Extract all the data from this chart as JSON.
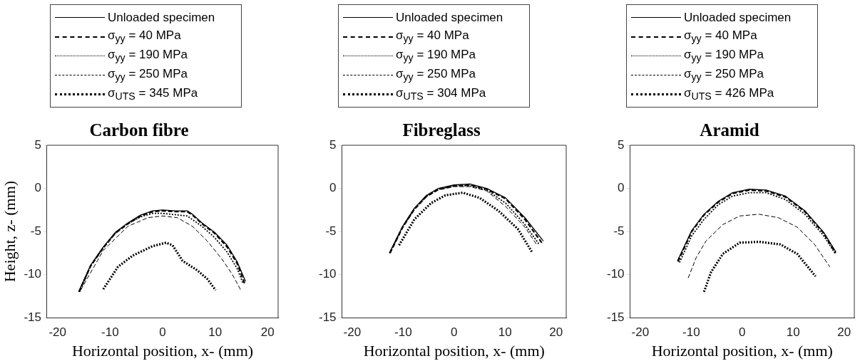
{
  "chart_data": [
    {
      "type": "line",
      "title": "Carbon fibre",
      "xlabel": "Horizontal position, x- (mm)",
      "ylabel": "Height, z- (mm)",
      "xlim": [
        -22,
        22
      ],
      "xticks": [
        -20,
        -10,
        0,
        10,
        20
      ],
      "ylim": [
        -15,
        5
      ],
      "yticks": [
        -15,
        -10,
        -5,
        0,
        5
      ],
      "grid": false,
      "legend": "top",
      "marker": "none",
      "series": [
        {
          "name": "Unloaded specimen",
          "color": "#000000",
          "line_style": "solid",
          "x": [
            -16.0,
            -13.7,
            -11.3,
            -9.0,
            -6.6,
            -4.2,
            -1.9,
            0,
            2.4,
            4.7,
            5.7,
            7.5,
            9.9,
            12.3,
            14.2,
            15.8
          ],
          "values": [
            -12.0,
            -8.9,
            -6.8,
            -5.1,
            -4.0,
            -3.1,
            -2.6,
            -2.5,
            -2.6,
            -2.6,
            -3.0,
            -4.0,
            -5.1,
            -6.6,
            -8.5,
            -10.8
          ]
        },
        {
          "name": "σ$_{yy}$ = 40 MPa",
          "color": "#000000",
          "line_style": "dashed",
          "x": [
            -15.9,
            -13.7,
            -11.3,
            -9.0,
            -6.6,
            -4.2,
            -1.9,
            0,
            2.4,
            4.7,
            5.7,
            7.5,
            9.9,
            12.3,
            14.2,
            15.6
          ],
          "values": [
            -12.0,
            -9.0,
            -6.9,
            -5.2,
            -4.1,
            -3.2,
            -2.7,
            -2.6,
            -2.7,
            -2.7,
            -3.1,
            -4.1,
            -5.2,
            -6.8,
            -8.7,
            -11.0
          ]
        },
        {
          "name": "σ$_{yy}$ = 190 MPa",
          "color": "#000000",
          "line_style": "dotted",
          "x": [
            -15.8,
            -13.7,
            -11.3,
            -9.0,
            -6.6,
            -4.2,
            -1.9,
            0,
            4.7,
            7.5,
            9.9,
            12.3,
            14.2,
            15.3
          ],
          "values": [
            -12.0,
            -9.0,
            -6.9,
            -5.2,
            -4.1,
            -3.3,
            -2.9,
            -2.9,
            -3.2,
            -4.4,
            -5.7,
            -7.4,
            -9.3,
            -11.0
          ]
        },
        {
          "name": "σ$_{yy}$ = 250 MPa",
          "color": "#000000",
          "line_style": "dashed",
          "x": [
            -15.6,
            -11.3,
            -6.6,
            -2.8,
            0,
            2.8,
            5.7,
            8.5,
            11.3,
            13.2,
            14.9
          ],
          "values": [
            -11.8,
            -7.2,
            -4.4,
            -3.4,
            -3.2,
            -3.4,
            -4.4,
            -6.1,
            -8.2,
            -9.9,
            -11.8
          ]
        },
        {
          "name": "σ$_{UTS}$ = 345 MPa",
          "color": "#000000",
          "line_style": "dotted",
          "x": [
            -11.3,
            -8.5,
            -5.7,
            -1.9,
            0.7,
            1.9,
            3.8,
            6.6,
            8.5,
            10.1
          ],
          "values": [
            -11.7,
            -9.1,
            -7.8,
            -6.7,
            -6.3,
            -6.6,
            -8.4,
            -9.5,
            -10.5,
            -11.8
          ]
        }
      ]
    },
    {
      "type": "line",
      "title": "Fibreglass",
      "xlabel": "Horizontal position, x- (mm)",
      "xlim": [
        -22,
        22
      ],
      "xticks": [
        -20,
        -10,
        0,
        10,
        20
      ],
      "ylim": [
        -15,
        5
      ],
      "yticks": [
        -15,
        -10,
        -5,
        0,
        5
      ],
      "grid": false,
      "legend": "top",
      "marker": "none",
      "series": [
        {
          "name": "Unloaded specimen",
          "color": "#000000",
          "line_style": "solid",
          "x": [
            -12.7,
            -10.1,
            -7.8,
            -5.4,
            -3.1,
            0,
            3.1,
            6.4,
            10.1,
            13.9,
            17.5
          ],
          "values": [
            -7.5,
            -4.4,
            -2.3,
            -0.8,
            0,
            0.4,
            0.5,
            0,
            -1.1,
            -3.4,
            -6.1
          ]
        },
        {
          "name": "σ$_{yy}$ = 40 MPa",
          "color": "#000000",
          "line_style": "dashed",
          "x": [
            -12.6,
            -10.1,
            -7.8,
            -5.4,
            -3.1,
            0,
            3.1,
            6.4,
            10.1,
            13.9,
            17.2
          ],
          "values": [
            -7.5,
            -4.5,
            -2.4,
            -0.9,
            -0.1,
            0.3,
            0.4,
            -0.1,
            -1.2,
            -3.6,
            -6.3
          ]
        },
        {
          "name": "σ$_{yy}$ = 190 MPa",
          "color": "#000000",
          "line_style": "dotted",
          "x": [
            -12.6,
            -10.1,
            -7.8,
            -5.4,
            -3.1,
            0,
            3.1,
            6.4,
            10.1,
            13.9,
            16.7
          ],
          "values": [
            -7.5,
            -4.5,
            -2.4,
            -0.9,
            -0.1,
            0.3,
            0.3,
            -0.2,
            -1.7,
            -4.2,
            -6.5
          ]
        },
        {
          "name": "σ$_{yy}$ = 250 MPa",
          "color": "#000000",
          "line_style": "dashed",
          "x": [
            -12.5,
            -10.1,
            -7.8,
            -5.4,
            -3.1,
            0,
            3.1,
            6.4,
            10.1,
            13.9,
            16.3
          ],
          "values": [
            -7.5,
            -4.6,
            -2.5,
            -1.0,
            -0.2,
            0.2,
            0.2,
            -0.3,
            -2.1,
            -4.5,
            -6.6
          ]
        },
        {
          "name": "σ$_{UTS}$ = 304 MPa",
          "color": "#000000",
          "line_style": "dotted",
          "x": [
            -10.8,
            -7.8,
            -4.5,
            -1.7,
            1.7,
            5.0,
            8.7,
            12.5,
            15.3
          ],
          "values": [
            -6.6,
            -3.6,
            -1.7,
            -0.8,
            -0.5,
            -1.1,
            -2.6,
            -4.7,
            -7.4
          ]
        }
      ]
    },
    {
      "type": "line",
      "title": "Aramid",
      "xlabel": "Horizontal position, x- (mm)",
      "xlim": [
        -22,
        22
      ],
      "xticks": [
        -20,
        -10,
        0,
        10,
        20
      ],
      "ylim": [
        -15,
        5
      ],
      "yticks": [
        -15,
        -10,
        -5,
        0,
        5
      ],
      "grid": false,
      "legend": "top",
      "marker": "none",
      "series": [
        {
          "name": "Unloaded specimen",
          "color": "#000000",
          "line_style": "solid",
          "x": [
            -12.7,
            -9.9,
            -7.5,
            -4.7,
            -1.9,
            1.4,
            4.7,
            8.5,
            12.3,
            16.0,
            18.4
          ],
          "values": [
            -8.4,
            -4.9,
            -3.0,
            -1.5,
            -0.5,
            -0.1,
            -0.2,
            -0.9,
            -2.6,
            -5.1,
            -7.4
          ]
        },
        {
          "name": "σ$_{yy}$ = 40 MPa",
          "color": "#000000",
          "line_style": "dashed",
          "x": [
            -12.6,
            -9.9,
            -7.5,
            -4.7,
            -1.9,
            1.4,
            4.7,
            8.5,
            12.3,
            16.0,
            18.3
          ],
          "values": [
            -8.5,
            -5.0,
            -3.1,
            -1.6,
            -0.6,
            -0.2,
            -0.3,
            -1.0,
            -2.7,
            -5.2,
            -7.5
          ]
        },
        {
          "name": "σ$_{yy}$ = 190 MPa",
          "color": "#000000",
          "line_style": "dotted",
          "x": [
            -12.3,
            -9.9,
            -7.5,
            -4.7,
            -1.9,
            1.4,
            4.7,
            8.5,
            12.3,
            16.0,
            18.3
          ],
          "values": [
            -8.6,
            -5.5,
            -3.6,
            -1.9,
            -0.9,
            -0.5,
            -0.5,
            -1.3,
            -3.0,
            -5.5,
            -7.6
          ]
        },
        {
          "name": "σ$_{yy}$ = 250 MPa",
          "color": "#000000",
          "line_style": "dashed",
          "x": [
            -10.6,
            -9.0,
            -7.1,
            -3.8,
            -0.5,
            3.3,
            7.1,
            10.8,
            14.2,
            17.2
          ],
          "values": [
            -10.4,
            -8.0,
            -6.1,
            -4.2,
            -3.2,
            -3.0,
            -3.4,
            -4.5,
            -6.5,
            -9.1
          ]
        },
        {
          "name": "σ$_{UTS}$ = 426 MPa",
          "color": "#000000",
          "line_style": "dotted",
          "x": [
            -7.5,
            -6.1,
            -3.8,
            -0.5,
            3.3,
            7.5,
            10.8,
            14.4
          ],
          "values": [
            -12.0,
            -9.7,
            -7.6,
            -6.3,
            -6.2,
            -6.5,
            -7.6,
            -10.2
          ]
        }
      ]
    }
  ]
}
